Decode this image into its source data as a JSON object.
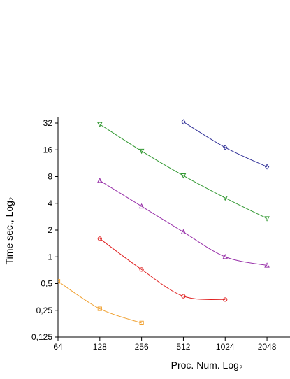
{
  "chart_data": {
    "type": "line",
    "x_label": "Proc. Num. Log₂",
    "y_label": "Time sec., Log₂",
    "log_x": 2,
    "log_y": 2,
    "xlim": [
      64,
      3000
    ],
    "ylim": [
      0.125,
      37
    ],
    "xticks": [
      64,
      128,
      256,
      512,
      1024,
      2048
    ],
    "yticks": [
      {
        "value": 0.125,
        "label": "0,125"
      },
      {
        "value": 0.25,
        "label": "0,25"
      },
      {
        "value": 0.5,
        "label": "0,5"
      },
      1,
      2,
      4,
      8,
      16,
      32
    ],
    "series": [
      {
        "color": "#f0a030",
        "marker": "square",
        "x": [
          64,
          128,
          256
        ],
        "values": [
          0.53,
          0.26,
          0.18
        ]
      },
      {
        "color": "#e02020",
        "marker": "circle",
        "x": [
          128,
          256,
          512,
          1024
        ],
        "values": [
          1.6,
          0.72,
          0.36,
          0.33
        ]
      },
      {
        "color": "#9933aa",
        "marker": "triangle",
        "x": [
          128,
          256,
          512,
          1024,
          2048
        ],
        "values": [
          7.2,
          3.7,
          1.9,
          1.0,
          0.8
        ]
      },
      {
        "color": "#339933",
        "marker": "triangle-down",
        "x": [
          128,
          256,
          512,
          1024,
          2048
        ],
        "values": [
          31,
          15.5,
          8.2,
          4.6,
          2.7
        ]
      },
      {
        "color": "#333399",
        "marker": "diamond",
        "x": [
          512,
          1024,
          2048
        ],
        "values": [
          33,
          17,
          10.3
        ]
      }
    ]
  }
}
